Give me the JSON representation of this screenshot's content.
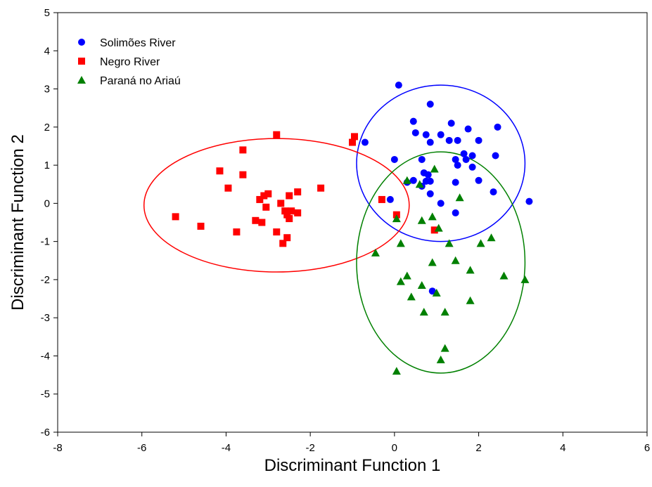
{
  "chart_data": {
    "type": "scatter",
    "title": "",
    "xlabel": "Discriminant Function 1",
    "ylabel": "Discriminant Function 2",
    "xlim": [
      -8,
      6
    ],
    "ylim": [
      -6,
      5
    ],
    "xticks": [
      -8,
      -6,
      -4,
      -2,
      0,
      2,
      4,
      6
    ],
    "yticks": [
      -6,
      -5,
      -4,
      -3,
      -2,
      -1,
      0,
      1,
      2,
      3,
      4,
      5
    ],
    "xtick_labels": [
      "-8",
      "-6",
      "-4",
      "-2",
      "0",
      "2",
      "4",
      "6"
    ],
    "ytick_labels": [
      "-6",
      "-5",
      "-4",
      "-3",
      "-2",
      "-1",
      "0",
      "1",
      "2",
      "3",
      "4",
      "5"
    ],
    "grid": false,
    "legend_position": "top-left",
    "series": [
      {
        "name": "Solimões River",
        "marker": "circle",
        "color": "#0000ff",
        "points": [
          [
            0.1,
            3.1
          ],
          [
            0.85,
            2.6
          ],
          [
            0.45,
            2.15
          ],
          [
            1.35,
            2.1
          ],
          [
            2.45,
            2.0
          ],
          [
            1.75,
            1.95
          ],
          [
            0.5,
            1.85
          ],
          [
            0.75,
            1.8
          ],
          [
            1.1,
            1.8
          ],
          [
            1.3,
            1.65
          ],
          [
            1.5,
            1.65
          ],
          [
            2.0,
            1.65
          ],
          [
            0.85,
            1.6
          ],
          [
            -0.7,
            1.6
          ],
          [
            1.65,
            1.3
          ],
          [
            2.4,
            1.25
          ],
          [
            1.85,
            1.25
          ],
          [
            0.0,
            1.15
          ],
          [
            0.65,
            1.15
          ],
          [
            1.45,
            1.15
          ],
          [
            1.7,
            1.15
          ],
          [
            1.5,
            1.0
          ],
          [
            1.85,
            0.95
          ],
          [
            0.7,
            0.8
          ],
          [
            0.8,
            0.75
          ],
          [
            0.45,
            0.6
          ],
          [
            2.0,
            0.6
          ],
          [
            0.75,
            0.58
          ],
          [
            0.85,
            0.58
          ],
          [
            0.3,
            0.55
          ],
          [
            1.45,
            0.55
          ],
          [
            0.65,
            0.45
          ],
          [
            0.85,
            0.25
          ],
          [
            2.35,
            0.3
          ],
          [
            -0.1,
            0.1
          ],
          [
            1.1,
            0.0
          ],
          [
            3.2,
            0.05
          ],
          [
            1.45,
            -0.25
          ],
          [
            0.9,
            -2.3
          ]
        ]
      },
      {
        "name": "Negro River",
        "marker": "square",
        "color": "#ff0000",
        "points": [
          [
            -2.8,
            1.8
          ],
          [
            -0.95,
            1.75
          ],
          [
            -1.0,
            1.6
          ],
          [
            -3.6,
            1.4
          ],
          [
            -4.15,
            0.85
          ],
          [
            -3.6,
            0.75
          ],
          [
            -3.95,
            0.4
          ],
          [
            -1.75,
            0.4
          ],
          [
            -2.3,
            0.3
          ],
          [
            -3.0,
            0.25
          ],
          [
            -3.1,
            0.2
          ],
          [
            -2.5,
            0.2
          ],
          [
            -3.2,
            0.1
          ],
          [
            -2.7,
            0.0
          ],
          [
            -0.3,
            0.1
          ],
          [
            -3.05,
            -0.1
          ],
          [
            -2.45,
            -0.2
          ],
          [
            -2.6,
            -0.2
          ],
          [
            -2.3,
            -0.25
          ],
          [
            -2.55,
            -0.3
          ],
          [
            -5.2,
            -0.35
          ],
          [
            0.05,
            -0.3
          ],
          [
            -2.5,
            -0.4
          ],
          [
            -3.3,
            -0.45
          ],
          [
            -3.15,
            -0.5
          ],
          [
            -4.6,
            -0.6
          ],
          [
            -3.75,
            -0.75
          ],
          [
            -2.8,
            -0.75
          ],
          [
            0.95,
            -0.7
          ],
          [
            -2.55,
            -0.9
          ],
          [
            -2.65,
            -1.05
          ]
        ]
      },
      {
        "name": "Paraná no Ariaú",
        "marker": "triangle",
        "color": "#008000",
        "points": [
          [
            0.95,
            0.9
          ],
          [
            0.3,
            0.6
          ],
          [
            0.6,
            0.5
          ],
          [
            1.55,
            0.15
          ],
          [
            0.05,
            -0.4
          ],
          [
            0.9,
            -0.35
          ],
          [
            0.65,
            -0.45
          ],
          [
            1.05,
            -0.65
          ],
          [
            2.3,
            -0.9
          ],
          [
            0.15,
            -1.05
          ],
          [
            1.3,
            -1.05
          ],
          [
            2.05,
            -1.05
          ],
          [
            -0.45,
            -1.3
          ],
          [
            1.45,
            -1.5
          ],
          [
            0.9,
            -1.55
          ],
          [
            1.8,
            -1.75
          ],
          [
            2.6,
            -1.9
          ],
          [
            0.3,
            -1.9
          ],
          [
            3.1,
            -2.0
          ],
          [
            0.15,
            -2.05
          ],
          [
            0.65,
            -2.15
          ],
          [
            1.0,
            -2.35
          ],
          [
            0.4,
            -2.45
          ],
          [
            1.8,
            -2.55
          ],
          [
            0.7,
            -2.85
          ],
          [
            1.2,
            -2.85
          ],
          [
            1.2,
            -3.8
          ],
          [
            1.1,
            -4.1
          ],
          [
            0.05,
            -4.4
          ]
        ]
      }
    ],
    "ellipses": [
      {
        "series": "Solimões River",
        "color": "#0000ff",
        "center": [
          1.1,
          1.05
        ],
        "rx": 2.0,
        "ry": 2.05
      },
      {
        "series": "Negro River",
        "color": "#ff0000",
        "center": [
          -2.8,
          -0.05
        ],
        "rx": 3.15,
        "ry": 1.75
      },
      {
        "series": "Paraná no Ariaú",
        "color": "#008000",
        "center": [
          1.1,
          -1.55
        ],
        "rx": 2.0,
        "ry": 2.9
      }
    ]
  }
}
